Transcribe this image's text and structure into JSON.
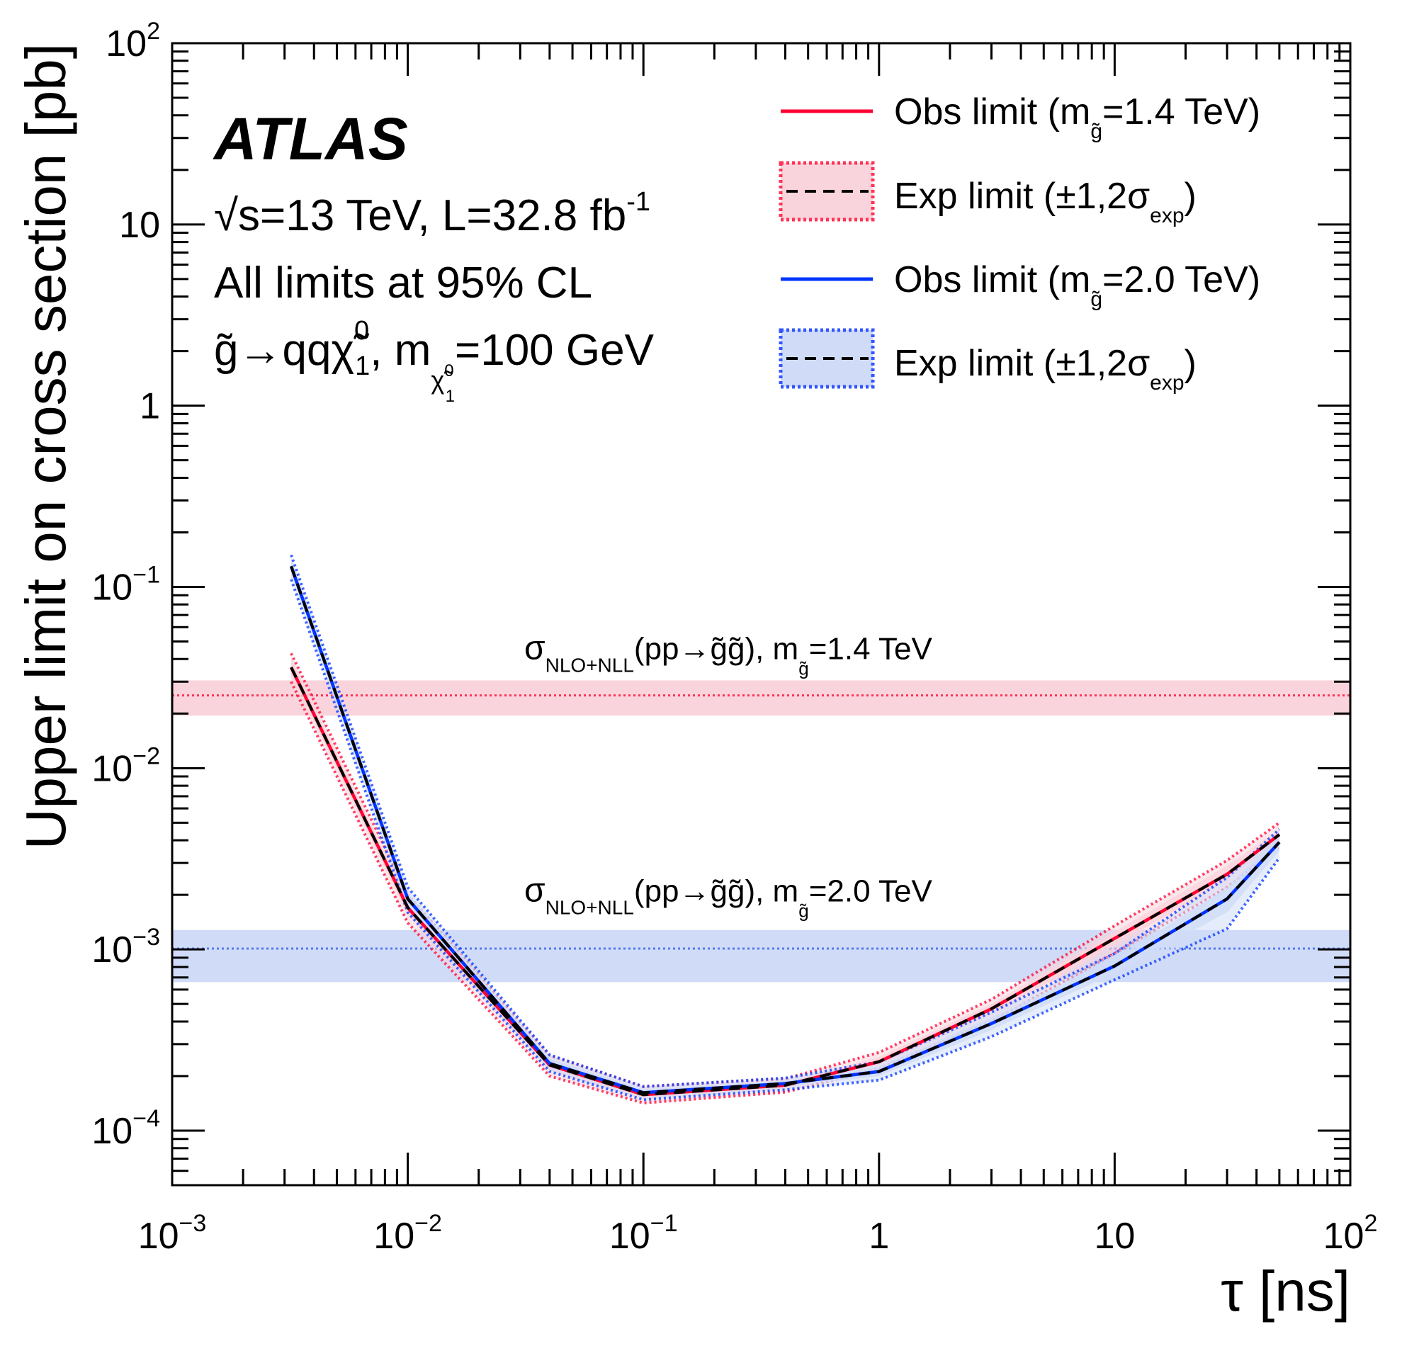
{
  "chart_data": {
    "type": "line",
    "xlabel": "τ [ns]",
    "ylabel": "Upper limit on cross section [pb]",
    "xscale": "log",
    "yscale": "log",
    "xlim": [
      0.001,
      100
    ],
    "ylim": [
      5e-05,
      100
    ],
    "x_ticks": [
      {
        "value": 0.001,
        "base": "10",
        "exp": "−3"
      },
      {
        "value": 0.01,
        "base": "10",
        "exp": "−2"
      },
      {
        "value": 0.1,
        "base": "10",
        "exp": "−1"
      },
      {
        "value": 1,
        "base": "1",
        "exp": ""
      },
      {
        "value": 10,
        "base": "10",
        "exp": ""
      },
      {
        "value": 100,
        "base": "10",
        "exp": "2"
      }
    ],
    "y_ticks": [
      {
        "value": 0.0001,
        "base": "10",
        "exp": "−4"
      },
      {
        "value": 0.001,
        "base": "10",
        "exp": "−3"
      },
      {
        "value": 0.01,
        "base": "10",
        "exp": "−2"
      },
      {
        "value": 0.1,
        "base": "10",
        "exp": "−1"
      },
      {
        "value": 1,
        "base": "1",
        "exp": ""
      },
      {
        "value": 10,
        "base": "10",
        "exp": ""
      },
      {
        "value": 100,
        "base": "10",
        "exp": "2"
      }
    ],
    "annotations": {
      "experiment": "ATLAS",
      "energy_line": "√s=13 TeV, L=32.8 fb",
      "energy_sup": "-1",
      "cl_line": "All limits at 95% CL",
      "process_line": "g̃→qqχ̃",
      "process_sup": "0",
      "process_sub": "1",
      "process_mass_prefix": ", m",
      "process_mass_value": "=100 GeV",
      "process_mass_sub_main": "χ̃",
      "process_mass_sub_sup": "0",
      "process_mass_sub_sub": "1"
    },
    "legend": [
      {
        "text": "Obs limit (m",
        "sub": "g̃",
        "tail": "=1.4 TeV)",
        "kind": "obs",
        "color": "#ff0033"
      },
      {
        "text": "Exp limit (±1,2σ",
        "sub": "exp",
        "tail": ")",
        "kind": "exp",
        "color": "#ff3355",
        "fill": "#fad4dc"
      },
      {
        "text": "Obs limit (m",
        "sub": "g̃",
        "tail": "=2.0 TeV)",
        "kind": "obs",
        "color": "#0033ff"
      },
      {
        "text": "Exp limit (±1,2σ",
        "sub": "exp",
        "tail": ")",
        "kind": "exp",
        "color": "#3355ff",
        "fill": "#d0dcf7"
      }
    ],
    "theory_bands": [
      {
        "label_sigma": "σ",
        "label_sub": "NLO+NLL",
        "label_mid": "(pp→g̃g̃), m",
        "label_sub2": "g̃",
        "label_tail": "=1.4 TeV",
        "center": 0.0252,
        "low": 0.0195,
        "high": 0.0305,
        "line_color": "#ff3355",
        "fill": "#fad4dc"
      },
      {
        "label_sigma": "σ",
        "label_sub": "NLO+NLL",
        "label_mid": "(pp→g̃g̃), m",
        "label_sub2": "g̃",
        "label_tail": "=2.0 TeV",
        "center": 0.00101,
        "low": 0.00066,
        "high": 0.00128,
        "line_color": "#5577ee",
        "fill": "#d0dcf7"
      }
    ],
    "x": [
      0.0032,
      0.01,
      0.04,
      0.1,
      0.4,
      1,
      3,
      10,
      30,
      50
    ],
    "series": [
      {
        "key": "exp14",
        "values": [
          0.036,
          0.0017,
          0.00023,
          0.000158,
          0.000178,
          0.00024,
          0.00047,
          0.00115,
          0.0026,
          0.0043
        ],
        "color": "#ff0033",
        "band_fill": "#fad4dc",
        "band1_lo": [
          0.033,
          0.00155,
          0.000215,
          0.000152,
          0.000172,
          0.00023,
          0.00044,
          0.00105,
          0.0024,
          0.004
        ],
        "band1_hi": [
          0.04,
          0.00185,
          0.000245,
          0.000168,
          0.000185,
          0.000255,
          0.0005,
          0.00125,
          0.0029,
          0.0046
        ],
        "band2_lo": [
          0.03,
          0.0014,
          0.0002,
          0.000142,
          0.000163,
          0.00022,
          0.0004,
          0.00095,
          0.0022,
          0.0037
        ],
        "band2_hi": [
          0.043,
          0.002,
          0.00026,
          0.000175,
          0.000193,
          0.00027,
          0.00053,
          0.00135,
          0.0031,
          0.005
        ]
      },
      {
        "key": "exp20",
        "values": [
          0.13,
          0.0019,
          0.000235,
          0.000162,
          0.000182,
          0.000212,
          0.00039,
          0.00081,
          0.0019,
          0.0039
        ],
        "color": "#0033ff",
        "band_fill": "#d0dcf7",
        "band1_lo": [
          0.12,
          0.00175,
          0.000222,
          0.000155,
          0.000175,
          0.0002,
          0.00036,
          0.00074,
          0.0016,
          0.0035
        ],
        "band1_hi": [
          0.14,
          0.00205,
          0.00025,
          0.000168,
          0.000188,
          0.000225,
          0.00042,
          0.00088,
          0.0022,
          0.0043
        ],
        "band2_lo": [
          0.11,
          0.0016,
          0.000212,
          0.000148,
          0.000168,
          0.00019,
          0.00033,
          0.00068,
          0.0013,
          0.0032
        ],
        "band2_hi": [
          0.15,
          0.0022,
          0.000262,
          0.000175,
          0.000195,
          0.00024,
          0.00045,
          0.00095,
          0.0025,
          0.0046
        ]
      },
      {
        "key": "obs14",
        "values": [
          0.036,
          0.0017,
          0.00023,
          0.000158,
          0.000178,
          0.00024,
          0.00047,
          0.00115,
          0.0026,
          0.0043
        ],
        "color": "#ff0033"
      },
      {
        "key": "obs20",
        "values": [
          0.13,
          0.0019,
          0.000235,
          0.000162,
          0.000182,
          0.000212,
          0.00039,
          0.00081,
          0.0019,
          0.0039
        ],
        "color": "#0033ff"
      }
    ]
  }
}
